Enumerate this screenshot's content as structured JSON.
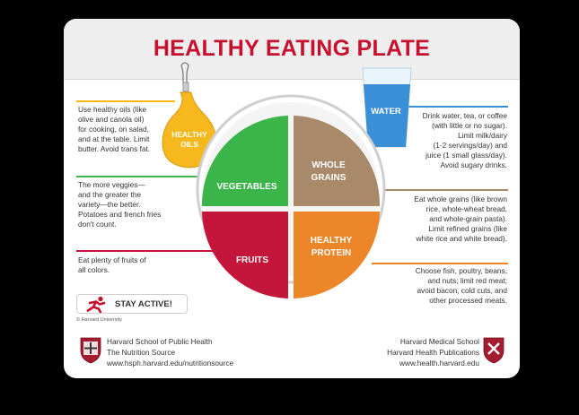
{
  "title": "HEALTHY EATING PLATE",
  "plate": {
    "vegetables": "VEGETABLES",
    "whole_grains": [
      "WHOLE",
      "GRAINS"
    ],
    "fruits": "FRUITS",
    "healthy_protein": [
      "HEALTHY",
      "PROTEIN"
    ]
  },
  "oil_bottle_label": [
    "HEALTHY",
    "OILS"
  ],
  "water_glass_label": "WATER",
  "notes": {
    "oils": [
      "Use healthy oils (like",
      "olive and canola oil)",
      "for cooking, on salad,",
      "and at the table. Limit",
      "butter. Avoid trans fat."
    ],
    "vegetables": [
      "The more veggies—",
      "and the greater the",
      "variety—the better.",
      "Potatoes and french fries",
      "don't count."
    ],
    "fruits": [
      "Eat plenty of fruits of",
      "all colors."
    ],
    "water": [
      "Drink water, tea, or coffee",
      "(with little or no sugar).",
      "Limit milk/dairy",
      "(1-2 servings/day) and",
      "juice (1 small glass/day).",
      "Avoid sugary drinks."
    ],
    "grains": [
      "Eat whole grains (like brown",
      "rice, whole-wheat bread,",
      "and whole-grain pasta).",
      "Limit refined grains (like",
      "white rice and white bread)."
    ],
    "protein": [
      "Choose fish, poultry, beans,",
      "and nuts; limit red meat;",
      "avoid bacon, cold cuts, and",
      "other processed meats."
    ]
  },
  "stay_active": "STAY ACTIVE!",
  "copyright": "© Harvard University",
  "footer_left": [
    "Harvard School of Public Health",
    "The Nutrition Source",
    "www.hsph.harvard.edu/nutritionsource"
  ],
  "footer_right": [
    "Harvard Medical School",
    "Harvard Health Publications",
    "www.health.harvard.edu"
  ],
  "colors": {
    "title": "#c8102e",
    "vegetables": "#3bb54a",
    "whole_grains": "#a88a6a",
    "fruits": "#c4163a",
    "protein": "#ec8628",
    "oil": "#f6b81c",
    "water": "#3b8fd6",
    "rule_oils": "#f6b81c",
    "rule_veg": "#3bb54a",
    "rule_fruits": "#c4163a",
    "rule_water": "#3b8fd6",
    "rule_grains": "#a88a6a",
    "rule_protein": "#ec8628"
  },
  "icons": [
    "oil-bottle-icon",
    "water-glass-icon",
    "running-person-icon",
    "harvard-shield-icon",
    "harvard-medical-shield-icon"
  ]
}
